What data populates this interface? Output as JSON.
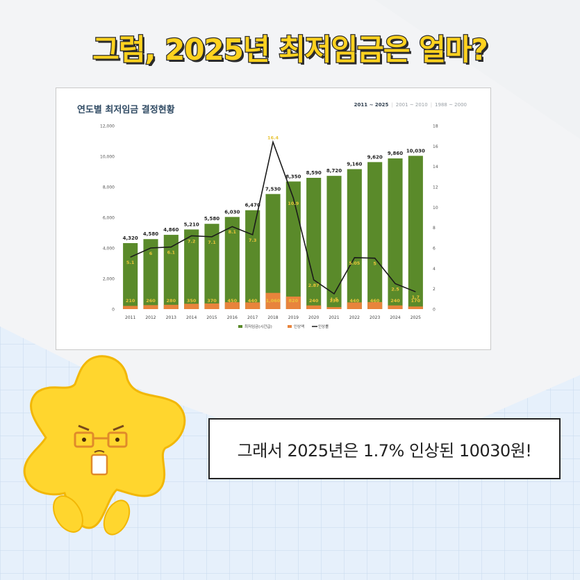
{
  "headline": "그럼, 2025년 최저임금은 얼마?",
  "chart_card": {
    "title": "연도별 최저임금 결정현황",
    "range_tabs": [
      "2011 ~ 2025",
      "2001 ~ 2010",
      "1988 ~ 2000"
    ],
    "active_tab": 0
  },
  "speech": "그래서 2025년은 1.7% 인상된 10030원!",
  "colors": {
    "headline_fill": "#ffd21f",
    "bar_wage": "#5a8a2a",
    "bar_increase": "#e8843c",
    "line_rate": "#1a1a1a",
    "rate_label": "#e8c53a"
  },
  "chart_data": {
    "type": "bar",
    "categories": [
      "2011",
      "2012",
      "2013",
      "2014",
      "2015",
      "2016",
      "2017",
      "2018",
      "2019",
      "2020",
      "2021",
      "2022",
      "2023",
      "2024",
      "2025"
    ],
    "series": [
      {
        "name": "최저임금(시간급)",
        "type": "bar",
        "axis": "left",
        "values": [
          4320,
          4580,
          4860,
          5210,
          5580,
          6030,
          6470,
          7530,
          8350,
          8590,
          8720,
          9160,
          9620,
          9860,
          10030
        ],
        "labels": [
          "4,320",
          "4,580",
          "4,860",
          "5,210",
          "5,580",
          "6,030",
          "6,470",
          "7,530",
          "8,350",
          "8,590",
          "8,720",
          "9,160",
          "9,620",
          "9,860",
          "10,030"
        ]
      },
      {
        "name": "인상액",
        "type": "bar",
        "axis": "left",
        "values": [
          210,
          260,
          280,
          350,
          370,
          450,
          440,
          1060,
          820,
          240,
          130,
          440,
          460,
          240,
          170
        ],
        "labels": [
          "210",
          "260",
          "280",
          "350",
          "370",
          "450",
          "440",
          "1,060",
          "820",
          "240",
          "130",
          "440",
          "460",
          "240",
          "170"
        ]
      },
      {
        "name": "인상률",
        "type": "line",
        "axis": "right",
        "values": [
          5.1,
          6,
          6.1,
          7.2,
          7.1,
          8.1,
          7.3,
          16.4,
          10.9,
          2.87,
          1.5,
          5.05,
          5,
          2.5,
          1.7
        ],
        "labels": [
          "5.1",
          "6",
          "6.1",
          "7.2",
          "7.1",
          "8.1",
          "7.3",
          "16.4",
          "10.9",
          "2.87",
          "1.5",
          "5.05",
          "5",
          "2.5",
          "1.7"
        ]
      }
    ],
    "y_left": {
      "min": 0,
      "max": 12000,
      "ticks": [
        "0",
        "2,000",
        "4,000",
        "6,000",
        "8,000",
        "10,000",
        "12,000"
      ]
    },
    "y_right": {
      "min": 0,
      "max": 18,
      "ticks": [
        "0",
        "2",
        "4",
        "6",
        "8",
        "10",
        "12",
        "14",
        "16",
        "18"
      ]
    },
    "legend": "bottom-center",
    "grid": false
  }
}
